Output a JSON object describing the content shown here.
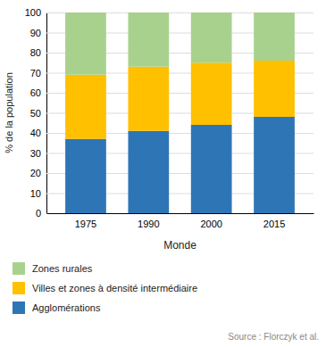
{
  "chart_data": {
    "type": "bar",
    "stacked": true,
    "categories": [
      "1975",
      "1990",
      "2000",
      "2015"
    ],
    "series": [
      {
        "name": "Agglomérations",
        "color": "#2E75B6",
        "values": [
          37,
          41,
          44,
          48
        ]
      },
      {
        "name": "Villes et zones à densité intermédiaire",
        "color": "#FFC000",
        "values": [
          32,
          32,
          31,
          28
        ]
      },
      {
        "name": "Zones rurales",
        "color": "#A9D18E",
        "values": [
          31,
          27,
          25,
          24
        ]
      }
    ],
    "ylabel": "% de la population",
    "xlabel": "Monde",
    "ylim": [
      0,
      100
    ],
    "yticks": [
      0,
      10,
      20,
      30,
      40,
      50,
      60,
      70,
      80,
      90,
      100
    ],
    "grid": true,
    "legend": "bottom",
    "annotation": "Source : Florczyk et al."
  }
}
